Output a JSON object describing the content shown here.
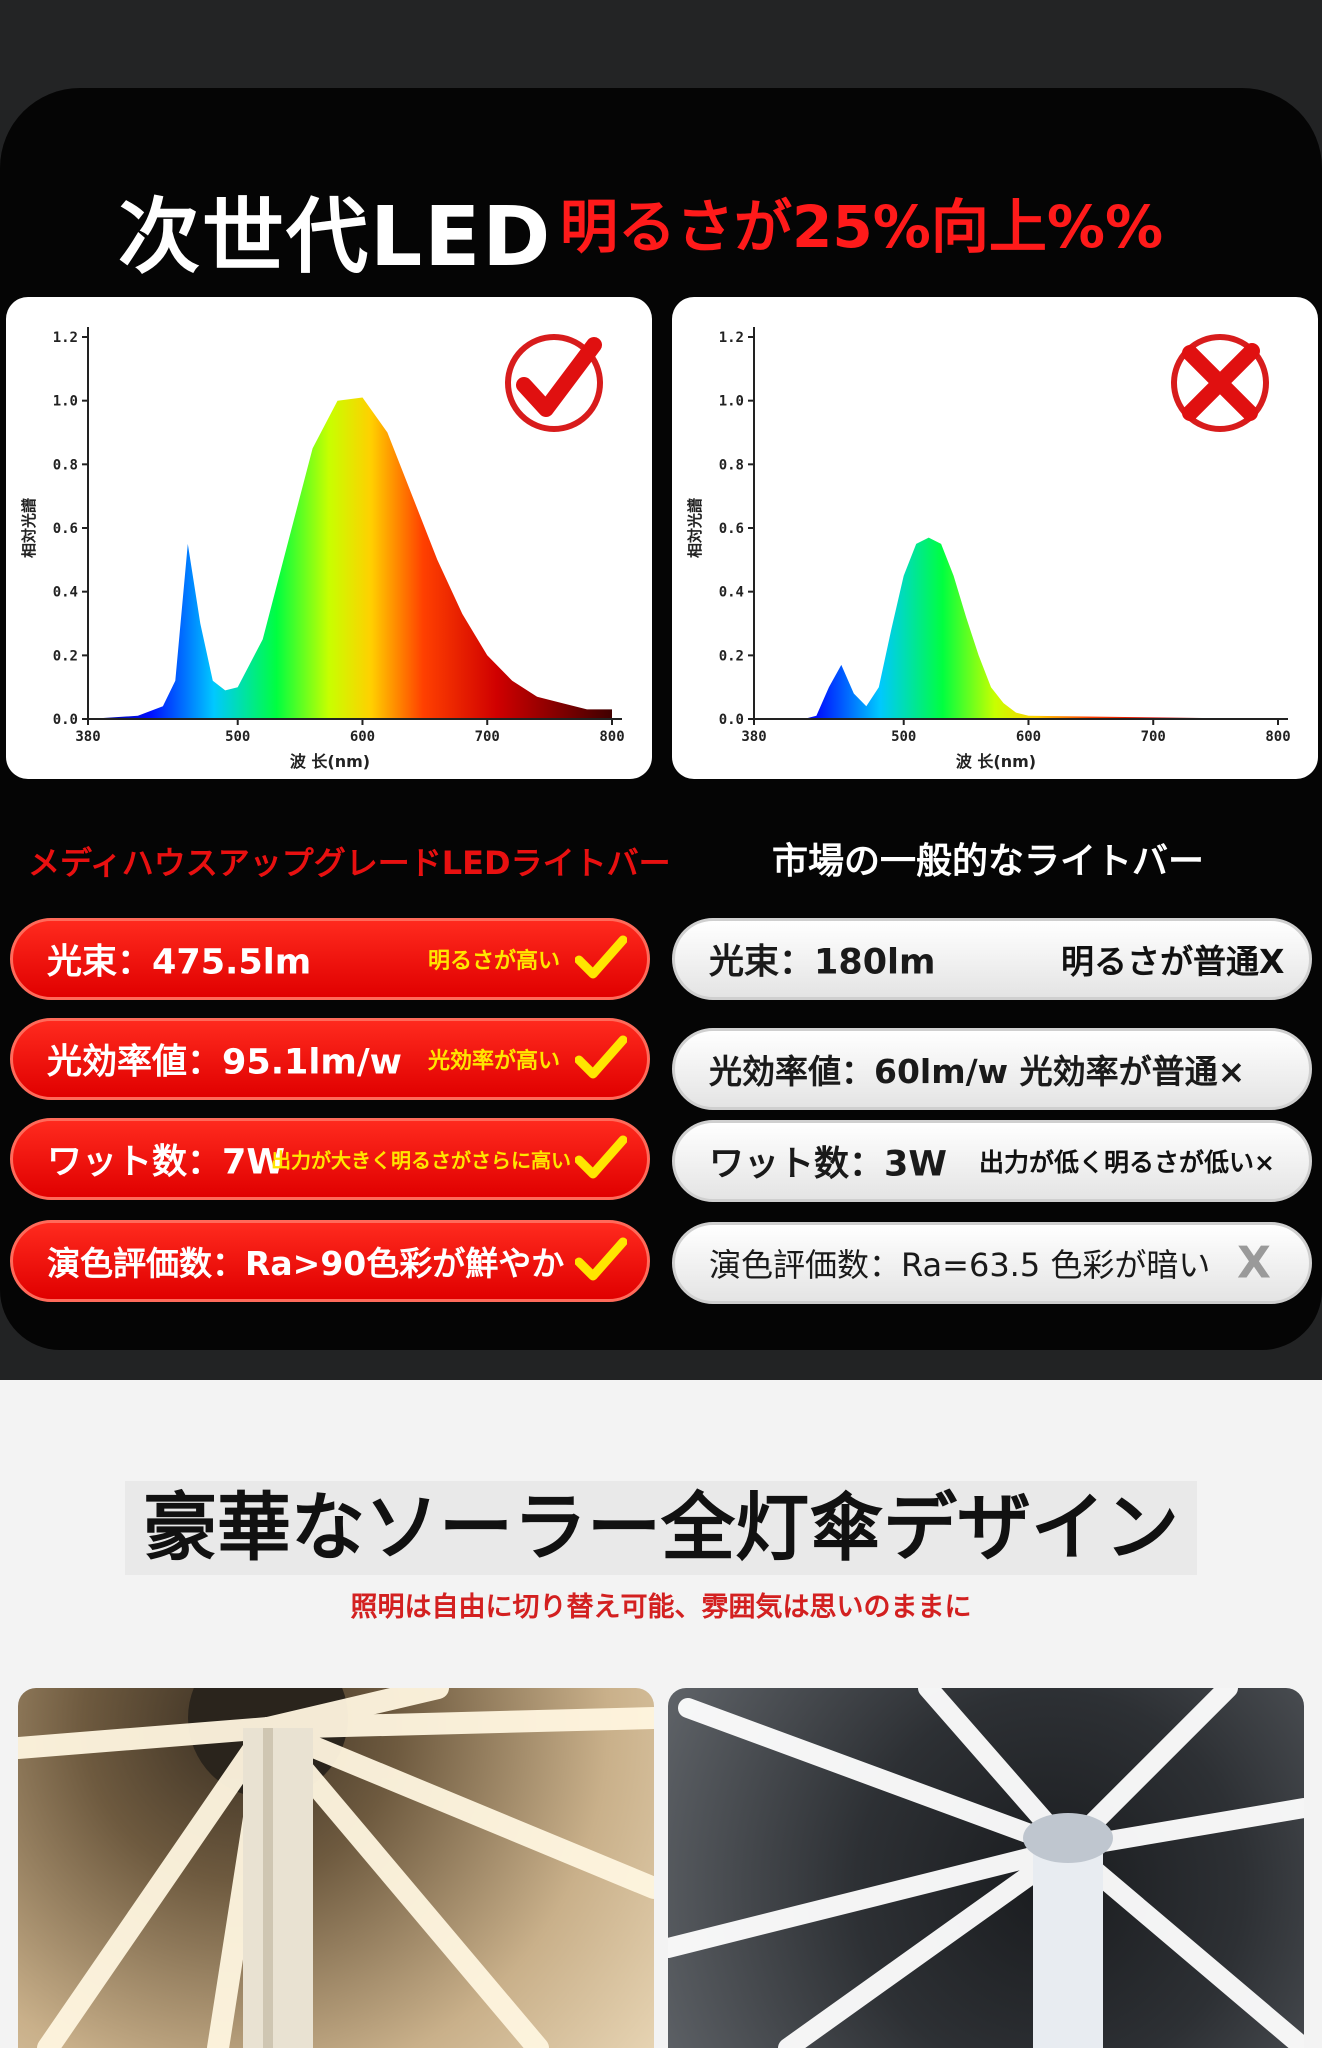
{
  "header": {
    "title_white": "次世代LED",
    "title_red": "明るさが25%向上%%"
  },
  "charts": {
    "ylabel": "相対光譜",
    "xlabel": "波 长(nm)",
    "y_ticks": [
      "1.2",
      "1.0",
      "0.8",
      "0.6",
      "0.4",
      "0.2",
      "0.0"
    ],
    "x_ticks": [
      "380",
      "500",
      "600",
      "700",
      "800"
    ]
  },
  "chart_data": [
    {
      "type": "area",
      "x": [
        380,
        420,
        440,
        450,
        460,
        470,
        480,
        490,
        500,
        520,
        540,
        560,
        580,
        600,
        620,
        640,
        660,
        680,
        700,
        720,
        740,
        760,
        780,
        800
      ],
      "y": [
        0.0,
        0.01,
        0.04,
        0.12,
        0.55,
        0.3,
        0.12,
        0.09,
        0.1,
        0.25,
        0.55,
        0.85,
        1.0,
        1.01,
        0.9,
        0.7,
        0.5,
        0.33,
        0.2,
        0.12,
        0.07,
        0.05,
        0.03,
        0.03
      ],
      "ylim": [
        0,
        1.2
      ],
      "xlim": [
        380,
        800
      ],
      "xlabel": "波 长(nm)",
      "ylabel": "相対光譜",
      "mark": "check"
    },
    {
      "type": "area",
      "x": [
        380,
        420,
        430,
        440,
        450,
        460,
        470,
        480,
        490,
        500,
        510,
        520,
        530,
        540,
        550,
        560,
        570,
        580,
        590,
        600,
        800
      ],
      "y": [
        0.0,
        0.0,
        0.01,
        0.1,
        0.17,
        0.08,
        0.04,
        0.1,
        0.28,
        0.45,
        0.55,
        0.57,
        0.55,
        0.45,
        0.32,
        0.2,
        0.1,
        0.05,
        0.02,
        0.01,
        0.0
      ],
      "ylim": [
        0,
        1.2
      ],
      "xlim": [
        380,
        800
      ],
      "xlabel": "波 长(nm)",
      "ylabel": "相対光譜",
      "mark": "cross"
    }
  ],
  "columns": {
    "left_header": "メディハウスアップグレードLEDライトバー",
    "right_header": "市場の一般的なライトバー"
  },
  "rows_left": [
    {
      "main": "光束：475.5lm",
      "note": "明るさが高い"
    },
    {
      "main": "光効率値：95.1lm/w",
      "note": "光効率が高い"
    },
    {
      "main": "ワット数：7W",
      "note": "出力が大きく明るさがさらに高い"
    },
    {
      "main": "演色評価数：Ra>90色彩が鮮やか",
      "note": ""
    }
  ],
  "rows_right": [
    {
      "main": "光束：180lm",
      "note": "明るさが普通X"
    },
    {
      "main": "光効率値：60lm/w 光効率が普通×",
      "note": ""
    },
    {
      "main": "ワット数：3W",
      "note": "出力が低く明るさが低い×"
    },
    {
      "main": "演色評価数：Ra=63.5 色彩が暗い",
      "note": "X"
    }
  ],
  "design": {
    "title": "豪華なソーラー全灯傘デザイン",
    "subtitle": "照明は自由に切り替え可能、雰囲気は思いのままに"
  },
  "colors": {
    "accent_red": "#ff1a1a",
    "check_yellow": "#ffe600",
    "warm_light": "#f6e7c8",
    "cool_light": "#f4f7fb"
  }
}
